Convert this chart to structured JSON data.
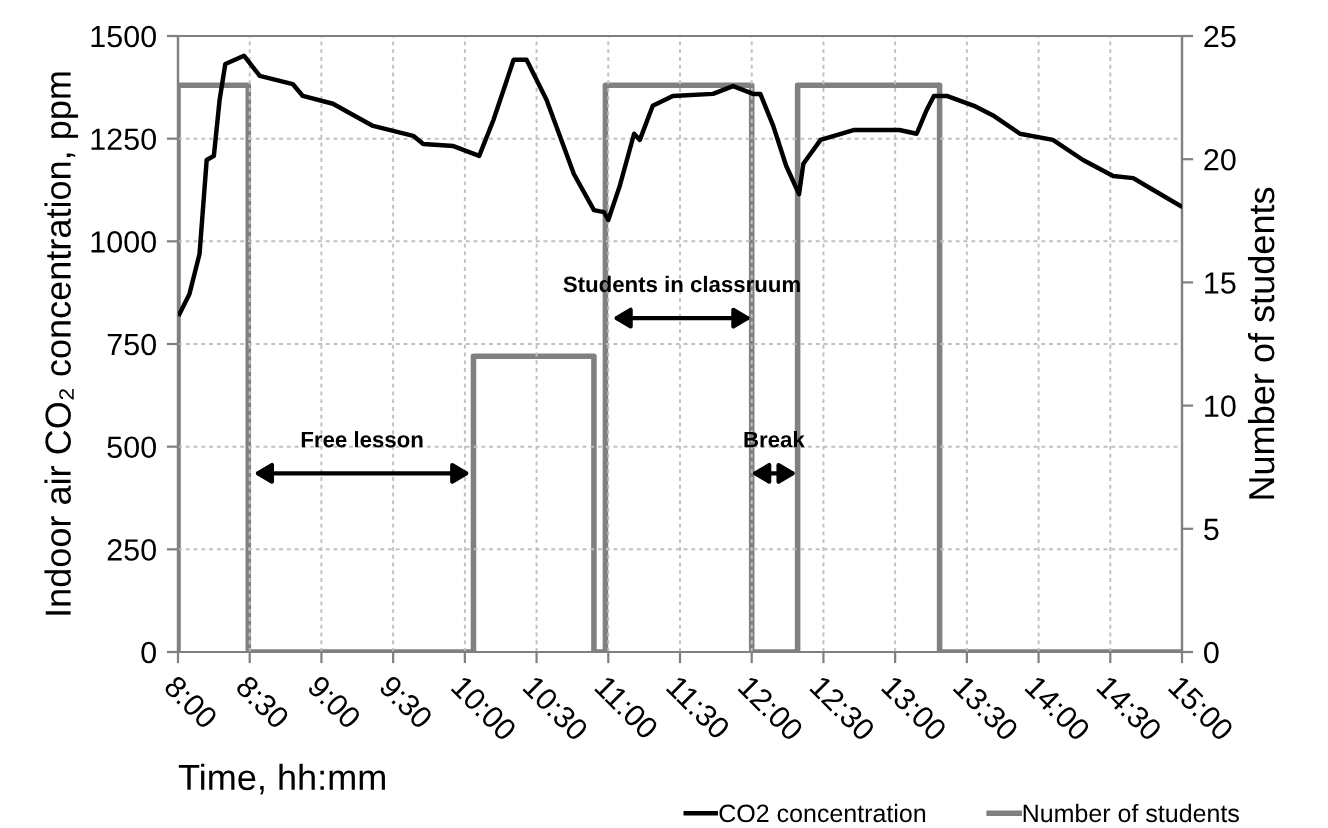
{
  "chart_data": {
    "type": "line",
    "xlabel": "Time, hh:mm",
    "ylabel": "Indoor air CO₂ concentration, ppm",
    "y2label": "Number of students",
    "xlim": [
      8,
      15
    ],
    "xticks": [
      {
        "value": 8,
        "label": "8:00"
      },
      {
        "value": 8.5,
        "label": "8:30"
      },
      {
        "value": 9,
        "label": "9:00"
      },
      {
        "value": 9.5,
        "label": "9:30"
      },
      {
        "value": 10,
        "label": "10:00"
      },
      {
        "value": 10.5,
        "label": "10:30"
      },
      {
        "value": 11,
        "label": "11:00"
      },
      {
        "value": 11.5,
        "label": "11:30"
      },
      {
        "value": 12,
        "label": "12:00"
      },
      {
        "value": 12.5,
        "label": "12:30"
      },
      {
        "value": 13,
        "label": "13:00"
      },
      {
        "value": 13.5,
        "label": "13:30"
      },
      {
        "value": 14,
        "label": "14:00"
      },
      {
        "value": 14.5,
        "label": "14:30"
      },
      {
        "value": 15,
        "label": "15:00"
      }
    ],
    "ylim": [
      0,
      1500
    ],
    "yticks": [
      0,
      250,
      500,
      750,
      1000,
      1250,
      1500
    ],
    "y2lim": [
      0,
      25
    ],
    "y2ticks": [
      0,
      5,
      10,
      15,
      20,
      25
    ],
    "grid": true,
    "legend": "bottom right",
    "series": [
      {
        "name": "CO2 concentration",
        "color": "#000000",
        "x": [
          8.01,
          8.08,
          8.15,
          8.2,
          8.25,
          8.29,
          8.33,
          8.46,
          8.57,
          8.8,
          8.87,
          9.08,
          9.36,
          9.64,
          9.71,
          9.92,
          10.1,
          10.2,
          10.34,
          10.43,
          10.57,
          10.76,
          10.9,
          10.97,
          11.0,
          11.08,
          11.18,
          11.22,
          11.31,
          11.45,
          11.73,
          11.87,
          12.01,
          12.06,
          12.15,
          12.24,
          12.33,
          12.36,
          12.48,
          12.71,
          13.03,
          13.15,
          13.22,
          13.27,
          13.36,
          13.55,
          13.69,
          13.87,
          14.1,
          14.31,
          14.52,
          14.66,
          14.8,
          14.99
        ],
        "values": [
          823,
          872,
          969,
          1198,
          1208,
          1344,
          1432,
          1452,
          1403,
          1383,
          1354,
          1335,
          1281,
          1257,
          1237,
          1232,
          1208,
          1296,
          1442,
          1442,
          1344,
          1164,
          1076,
          1071,
          1052,
          1135,
          1262,
          1247,
          1330,
          1354,
          1359,
          1378,
          1359,
          1359,
          1281,
          1184,
          1115,
          1189,
          1247,
          1271,
          1271,
          1262,
          1320,
          1354,
          1354,
          1330,
          1305,
          1262,
          1247,
          1198,
          1159,
          1154,
          1125,
          1086
        ]
      },
      {
        "name": "Number of students",
        "color": "#808080",
        "axis": "y2",
        "x": [
          8.0,
          8.0,
          8.49,
          8.49,
          10.06,
          10.06,
          10.9,
          10.9,
          10.98,
          10.98,
          12.0,
          12.0,
          12.32,
          12.32,
          13.31,
          13.31,
          15.0
        ],
        "values": [
          0,
          23,
          23,
          0,
          0,
          12,
          12,
          0,
          0,
          23,
          23,
          0,
          0,
          23,
          23,
          0,
          0
        ]
      }
    ],
    "annotations": [
      "Free lesson",
      "Students in classruum",
      "Break"
    ]
  }
}
